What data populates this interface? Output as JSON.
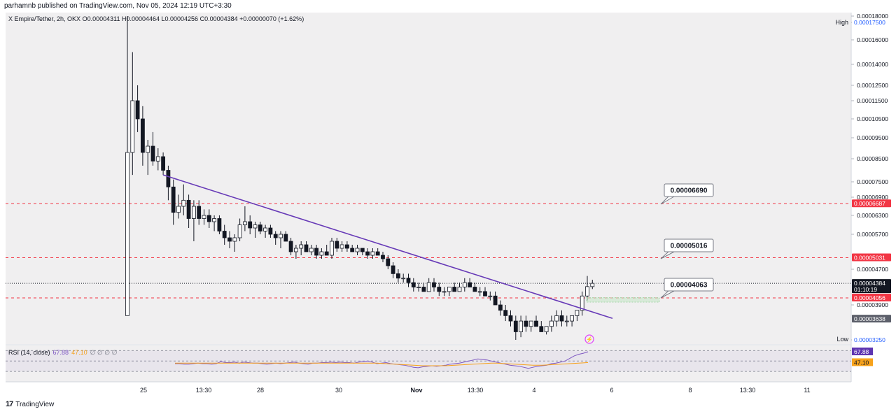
{
  "header": {
    "published_line": "parhamnb published on TradingView.com, Nov 05, 2024 12:19 UTC+3:30"
  },
  "legend": {
    "symbol_line": "X Empire/Tether, 2h, OKX",
    "ohlc": "O0.00004311 H0.00004464 L0.00004256 C0.00004384 +0.00000070 (+1.62%)"
  },
  "labels": {
    "high": "High",
    "low": "Low"
  },
  "rsi": {
    "name": "RSI (14, close)",
    "value": "67.88",
    "ma_value": "47.10",
    "zeros": "∅ ∅ ∅ ∅"
  },
  "footer": {
    "brand": "TradingView"
  },
  "colors": {
    "up": "#ffffff",
    "down": "#131722",
    "trendline": "#673ab7",
    "red_line": "#f23645",
    "rsi_line": "#7e57c2",
    "rsi_ma": "#f7a21b"
  },
  "chart_data": {
    "type": "candlestick",
    "title": "X Empire/Tether, 2h, OKX",
    "y_axis_ticks": [
      "0.00018000",
      "0.00017500",
      "0.00016000",
      "0.00014000",
      "0.00012500",
      "0.00011500",
      "0.00010500",
      "0.00009500",
      "0.00008500",
      "0.00007500",
      "0.00006900",
      "0.00006300",
      "0.00005700",
      "0.00004700",
      "0.00003900",
      "0.00003250"
    ],
    "y_axis_tick_values": [
      0.00018,
      0.000175,
      0.00016,
      0.00014,
      0.000125,
      0.000115,
      0.000105,
      9.5e-05,
      8.5e-05,
      7.5e-05,
      6.9e-05,
      6.3e-05,
      5.7e-05,
      4.7e-05,
      3.9e-05,
      3.25e-05
    ],
    "x_axis_ticks": [
      "25",
      "13:30",
      "28",
      "30",
      "Nov",
      "13:30",
      "4",
      "6",
      "8",
      "13:30",
      "11"
    ],
    "price_tags": [
      {
        "label": "0.00017500",
        "value": 0.000175,
        "style": "high"
      },
      {
        "label": "0.00006687",
        "value": 6.687e-05,
        "style": "red"
      },
      {
        "label": "0.00005031",
        "value": 5.031e-05,
        "style": "red"
      },
      {
        "label": "0.00004384",
        "value": 4.384e-05,
        "style": "last",
        "sub": "01:10:19"
      },
      {
        "label": "0.00004056",
        "value": 4.056e-05,
        "style": "red"
      },
      {
        "label": "0.00003638",
        "value": 3.638e-05,
        "style": "gray"
      },
      {
        "label": "0.00003250",
        "value": 3.25e-05,
        "style": "low"
      }
    ],
    "callouts": [
      {
        "label": "0.00006690",
        "value": 6.69e-05
      },
      {
        "label": "0.00005016",
        "value": 5.016e-05
      },
      {
        "label": "0.00004063",
        "value": 4.063e-05
      }
    ],
    "horizontal_levels": [
      6.687e-05,
      5.031e-05,
      4.056e-05
    ],
    "last_price": 4.384e-05,
    "trendline": {
      "start_price": 7.8e-05,
      "end_price": 3.65e-05
    },
    "candles_ohlc": [
      [
        3.7e-05,
        0.00018,
        3.7e-05,
        8.8e-05
      ],
      [
        8.8e-05,
        0.00015,
        7.8e-05,
        0.000115
      ],
      [
        0.000115,
        0.000125,
        9.8e-05,
        0.000105
      ],
      [
        0.000105,
        0.000112,
        8.2e-05,
        8.8e-05
      ],
      [
        8.8e-05,
        9.4e-05,
        7.8e-05,
        9.1e-05
      ],
      [
        9.1e-05,
        9.8e-05,
        8.2e-05,
        8.4e-05
      ],
      [
        8.4e-05,
        9e-05,
        8e-05,
        8.6e-05
      ],
      [
        8.6e-05,
        8.8e-05,
        7.8e-05,
        8e-05
      ],
      [
        8e-05,
        8.2e-05,
        6.8e-05,
        7.3e-05
      ],
      [
        7.3e-05,
        7.6e-05,
        6e-05,
        6.4e-05
      ],
      [
        6.4e-05,
        7e-05,
        6.2e-05,
        6.6e-05
      ],
      [
        6.6e-05,
        7.4e-05,
        6.3e-05,
        6.8e-05
      ],
      [
        6.8e-05,
        7e-05,
        5.9e-05,
        6.2e-05
      ],
      [
        6.2e-05,
        6.8e-05,
        5.5e-05,
        6.6e-05
      ],
      [
        6.6e-05,
        6.8e-05,
        6e-05,
        6.2e-05
      ],
      [
        6.2e-05,
        6.5e-05,
        6e-05,
        6.3e-05
      ],
      [
        6.3e-05,
        6.5e-05,
        5.9e-05,
        6.1e-05
      ],
      [
        6.1e-05,
        6.3e-05,
        5.8e-05,
        6.2e-05
      ],
      [
        6.2e-05,
        6.3e-05,
        5.7e-05,
        5.8e-05
      ],
      [
        5.8e-05,
        6e-05,
        5.4e-05,
        5.6e-05
      ],
      [
        5.6e-05,
        5.8e-05,
        5.3e-05,
        5.5e-05
      ],
      [
        5.5e-05,
        5.7e-05,
        5.2e-05,
        5.6e-05
      ],
      [
        5.6e-05,
        6.2e-05,
        5.5e-05,
        6e-05
      ],
      [
        6e-05,
        6.6e-05,
        5.8e-05,
        6.1e-05
      ],
      [
        6.1e-05,
        6.3e-05,
        5.7e-05,
        5.9e-05
      ],
      [
        5.9e-05,
        6.1e-05,
        5.6e-05,
        6e-05
      ],
      [
        6e-05,
        6.1e-05,
        5.7e-05,
        5.8e-05
      ],
      [
        5.8e-05,
        6e-05,
        5.6e-05,
        5.9e-05
      ],
      [
        5.9e-05,
        6e-05,
        5.6e-05,
        5.7e-05
      ],
      [
        5.7e-05,
        5.8e-05,
        5.4e-05,
        5.6e-05
      ],
      [
        5.6e-05,
        5.8e-05,
        5.3e-05,
        5.7e-05
      ],
      [
        5.7e-05,
        5.8e-05,
        5.5e-05,
        5.5e-05
      ],
      [
        5.5e-05,
        5.6e-05,
        5.1e-05,
        5.2e-05
      ],
      [
        5.2e-05,
        5.4e-05,
        5e-05,
        5.3e-05
      ],
      [
        5.3e-05,
        5.5e-05,
        5.1e-05,
        5.4e-05
      ],
      [
        5.4e-05,
        5.5e-05,
        5.2e-05,
        5.2e-05
      ],
      [
        5.2e-05,
        5.4e-05,
        5.1e-05,
        5.3e-05
      ],
      [
        5.3e-05,
        5.4e-05,
        5e-05,
        5.1e-05
      ],
      [
        5.1e-05,
        5.3e-05,
        5e-05,
        5.2e-05
      ],
      [
        5.2e-05,
        5.4e-05,
        5.1e-05,
        5.1e-05
      ],
      [
        5.1e-05,
        5.6e-05,
        5e-05,
        5.5e-05
      ],
      [
        5.5e-05,
        5.6e-05,
        5.2e-05,
        5.3e-05
      ],
      [
        5.3e-05,
        5.5e-05,
        5.2e-05,
        5.4e-05
      ],
      [
        5.4e-05,
        5.5e-05,
        5.2e-05,
        5.3e-05
      ],
      [
        5.3e-05,
        5.4e-05,
        5.2e-05,
        5.2e-05
      ],
      [
        5.2e-05,
        5.4e-05,
        5.1e-05,
        5.3e-05
      ],
      [
        5.3e-05,
        5.3e-05,
        5.1e-05,
        5.2e-05
      ],
      [
        5.2e-05,
        5.3e-05,
        5e-05,
        5.1e-05
      ],
      [
        5.1e-05,
        5.3e-05,
        5e-05,
        5.2e-05
      ],
      [
        5.2e-05,
        5.3e-05,
        5.1e-05,
        5.1e-05
      ],
      [
        5.1e-05,
        5.2e-05,
        4.9e-05,
        5e-05
      ],
      [
        5e-05,
        5.1e-05,
        4.7e-05,
        4.8e-05
      ],
      [
        4.8e-05,
        4.9e-05,
        4.5e-05,
        4.6e-05
      ],
      [
        4.6e-05,
        4.7e-05,
        4.4e-05,
        4.5e-05
      ],
      [
        4.5e-05,
        4.6e-05,
        4.4e-05,
        4.5e-05
      ],
      [
        4.5e-05,
        4.6e-05,
        4.3e-05,
        4.4e-05
      ],
      [
        4.4e-05,
        4.5e-05,
        4.2e-05,
        4.3e-05
      ],
      [
        4.3e-05,
        4.4e-05,
        4.2e-05,
        4.3e-05
      ],
      [
        4.3e-05,
        4.4e-05,
        4.2e-05,
        4.2e-05
      ],
      [
        4.2e-05,
        4.5e-05,
        4.2e-05,
        4.4e-05
      ],
      [
        4.4e-05,
        4.5e-05,
        4.2e-05,
        4.3e-05
      ],
      [
        4.3e-05,
        4.4e-05,
        4.1e-05,
        4.2e-05
      ],
      [
        4.2e-05,
        4.3e-05,
        4.1e-05,
        4.2e-05
      ],
      [
        4.2e-05,
        4.3e-05,
        4.1e-05,
        4.3e-05
      ],
      [
        4.3e-05,
        4.4e-05,
        4.2e-05,
        4.2e-05
      ],
      [
        4.2e-05,
        4.4e-05,
        4.2e-05,
        4.3e-05
      ],
      [
        4.3e-05,
        4.5e-05,
        4.2e-05,
        4.4e-05
      ],
      [
        4.4e-05,
        4.5e-05,
        4.3e-05,
        4.3e-05
      ],
      [
        4.3e-05,
        4.4e-05,
        4.2e-05,
        4.2e-05
      ],
      [
        4.2e-05,
        4.3e-05,
        4.1e-05,
        4.2e-05
      ],
      [
        4.2e-05,
        4.3e-05,
        4.1e-05,
        4.1e-05
      ],
      [
        4.1e-05,
        4.2e-05,
        4e-05,
        4.1e-05
      ],
      [
        4.1e-05,
        4.2e-05,
        3.9e-05,
        3.9e-05
      ],
      [
        3.9e-05,
        4e-05,
        3.7e-05,
        3.8e-05
      ],
      [
        3.8e-05,
        3.9e-05,
        3.6e-05,
        3.7e-05
      ],
      [
        3.7e-05,
        3.8e-05,
        3.5e-05,
        3.6e-05
      ],
      [
        3.6e-05,
        3.7e-05,
        3.25e-05,
        3.4e-05
      ],
      [
        3.4e-05,
        3.7e-05,
        3.3e-05,
        3.6e-05
      ],
      [
        3.6e-05,
        3.7e-05,
        3.4e-05,
        3.5e-05
      ],
      [
        3.5e-05,
        3.6e-05,
        3.4e-05,
        3.6e-05
      ],
      [
        3.6e-05,
        3.7e-05,
        3.5e-05,
        3.5e-05
      ],
      [
        3.5e-05,
        3.6e-05,
        3.4e-05,
        3.4e-05
      ],
      [
        3.4e-05,
        3.5e-05,
        3.35e-05,
        3.5e-05
      ],
      [
        3.5e-05,
        3.7e-05,
        3.4e-05,
        3.6e-05
      ],
      [
        3.6e-05,
        3.8e-05,
        3.5e-05,
        3.7e-05
      ],
      [
        3.7e-05,
        3.8e-05,
        3.5e-05,
        3.6e-05
      ],
      [
        3.6e-05,
        3.7e-05,
        3.5e-05,
        3.6e-05
      ],
      [
        3.6e-05,
        3.7e-05,
        3.5e-05,
        3.7e-05
      ],
      [
        3.7e-05,
        3.8e-05,
        3.6e-05,
        3.8e-05
      ],
      [
        3.8e-05,
        4.2e-05,
        3.7e-05,
        4.1e-05
      ],
      [
        4.1e-05,
        4.55e-05,
        4e-05,
        4.31e-05
      ],
      [
        4.31e-05,
        4.464e-05,
        4.256e-05,
        4.384e-05
      ]
    ],
    "rsi_series": [
      45,
      45,
      44,
      44,
      45,
      46,
      45,
      45,
      44,
      45,
      49,
      47,
      47,
      48,
      46,
      48,
      47,
      46,
      46,
      45,
      44,
      45,
      46,
      45,
      46,
      47,
      48,
      46,
      45,
      44,
      46,
      46,
      47,
      47,
      48,
      47,
      48,
      47,
      47,
      46,
      48,
      49,
      50,
      48,
      45,
      46,
      47,
      45,
      44,
      43,
      42,
      40,
      38,
      37,
      39,
      40,
      41,
      40,
      41,
      42,
      44,
      45,
      46,
      48,
      50,
      52,
      54,
      53,
      52,
      50,
      48,
      46,
      44,
      42,
      41,
      40,
      38,
      36,
      38,
      40,
      41,
      42,
      45,
      46,
      48,
      50,
      55,
      60,
      63,
      65,
      67.88
    ],
    "rsi_ma_series": [
      46,
      46,
      46,
      46,
      46,
      46,
      46,
      46,
      46,
      46,
      46,
      46,
      46,
      46,
      46,
      46,
      46,
      46,
      46,
      46,
      46,
      46,
      46,
      46,
      46,
      46,
      46,
      46,
      46,
      46,
      46,
      46,
      46,
      46,
      46,
      46,
      46,
      46,
      46,
      46,
      46,
      46,
      46,
      46,
      46,
      45.5,
      45,
      44.5,
      44,
      43.5,
      43,
      42.5,
      42,
      41.5,
      41,
      41,
      41,
      41,
      41,
      41,
      41.5,
      42,
      42.5,
      43,
      43.5,
      44,
      44.5,
      45,
      45.5,
      46,
      46,
      45.5,
      45,
      44.5,
      44,
      43.5,
      43,
      42.5,
      42,
      42,
      42,
      42.5,
      43,
      43.5,
      44,
      44.5,
      45,
      45.5,
      46,
      46.5,
      47.1
    ],
    "rsi_levels": [
      70,
      50,
      30
    ]
  }
}
